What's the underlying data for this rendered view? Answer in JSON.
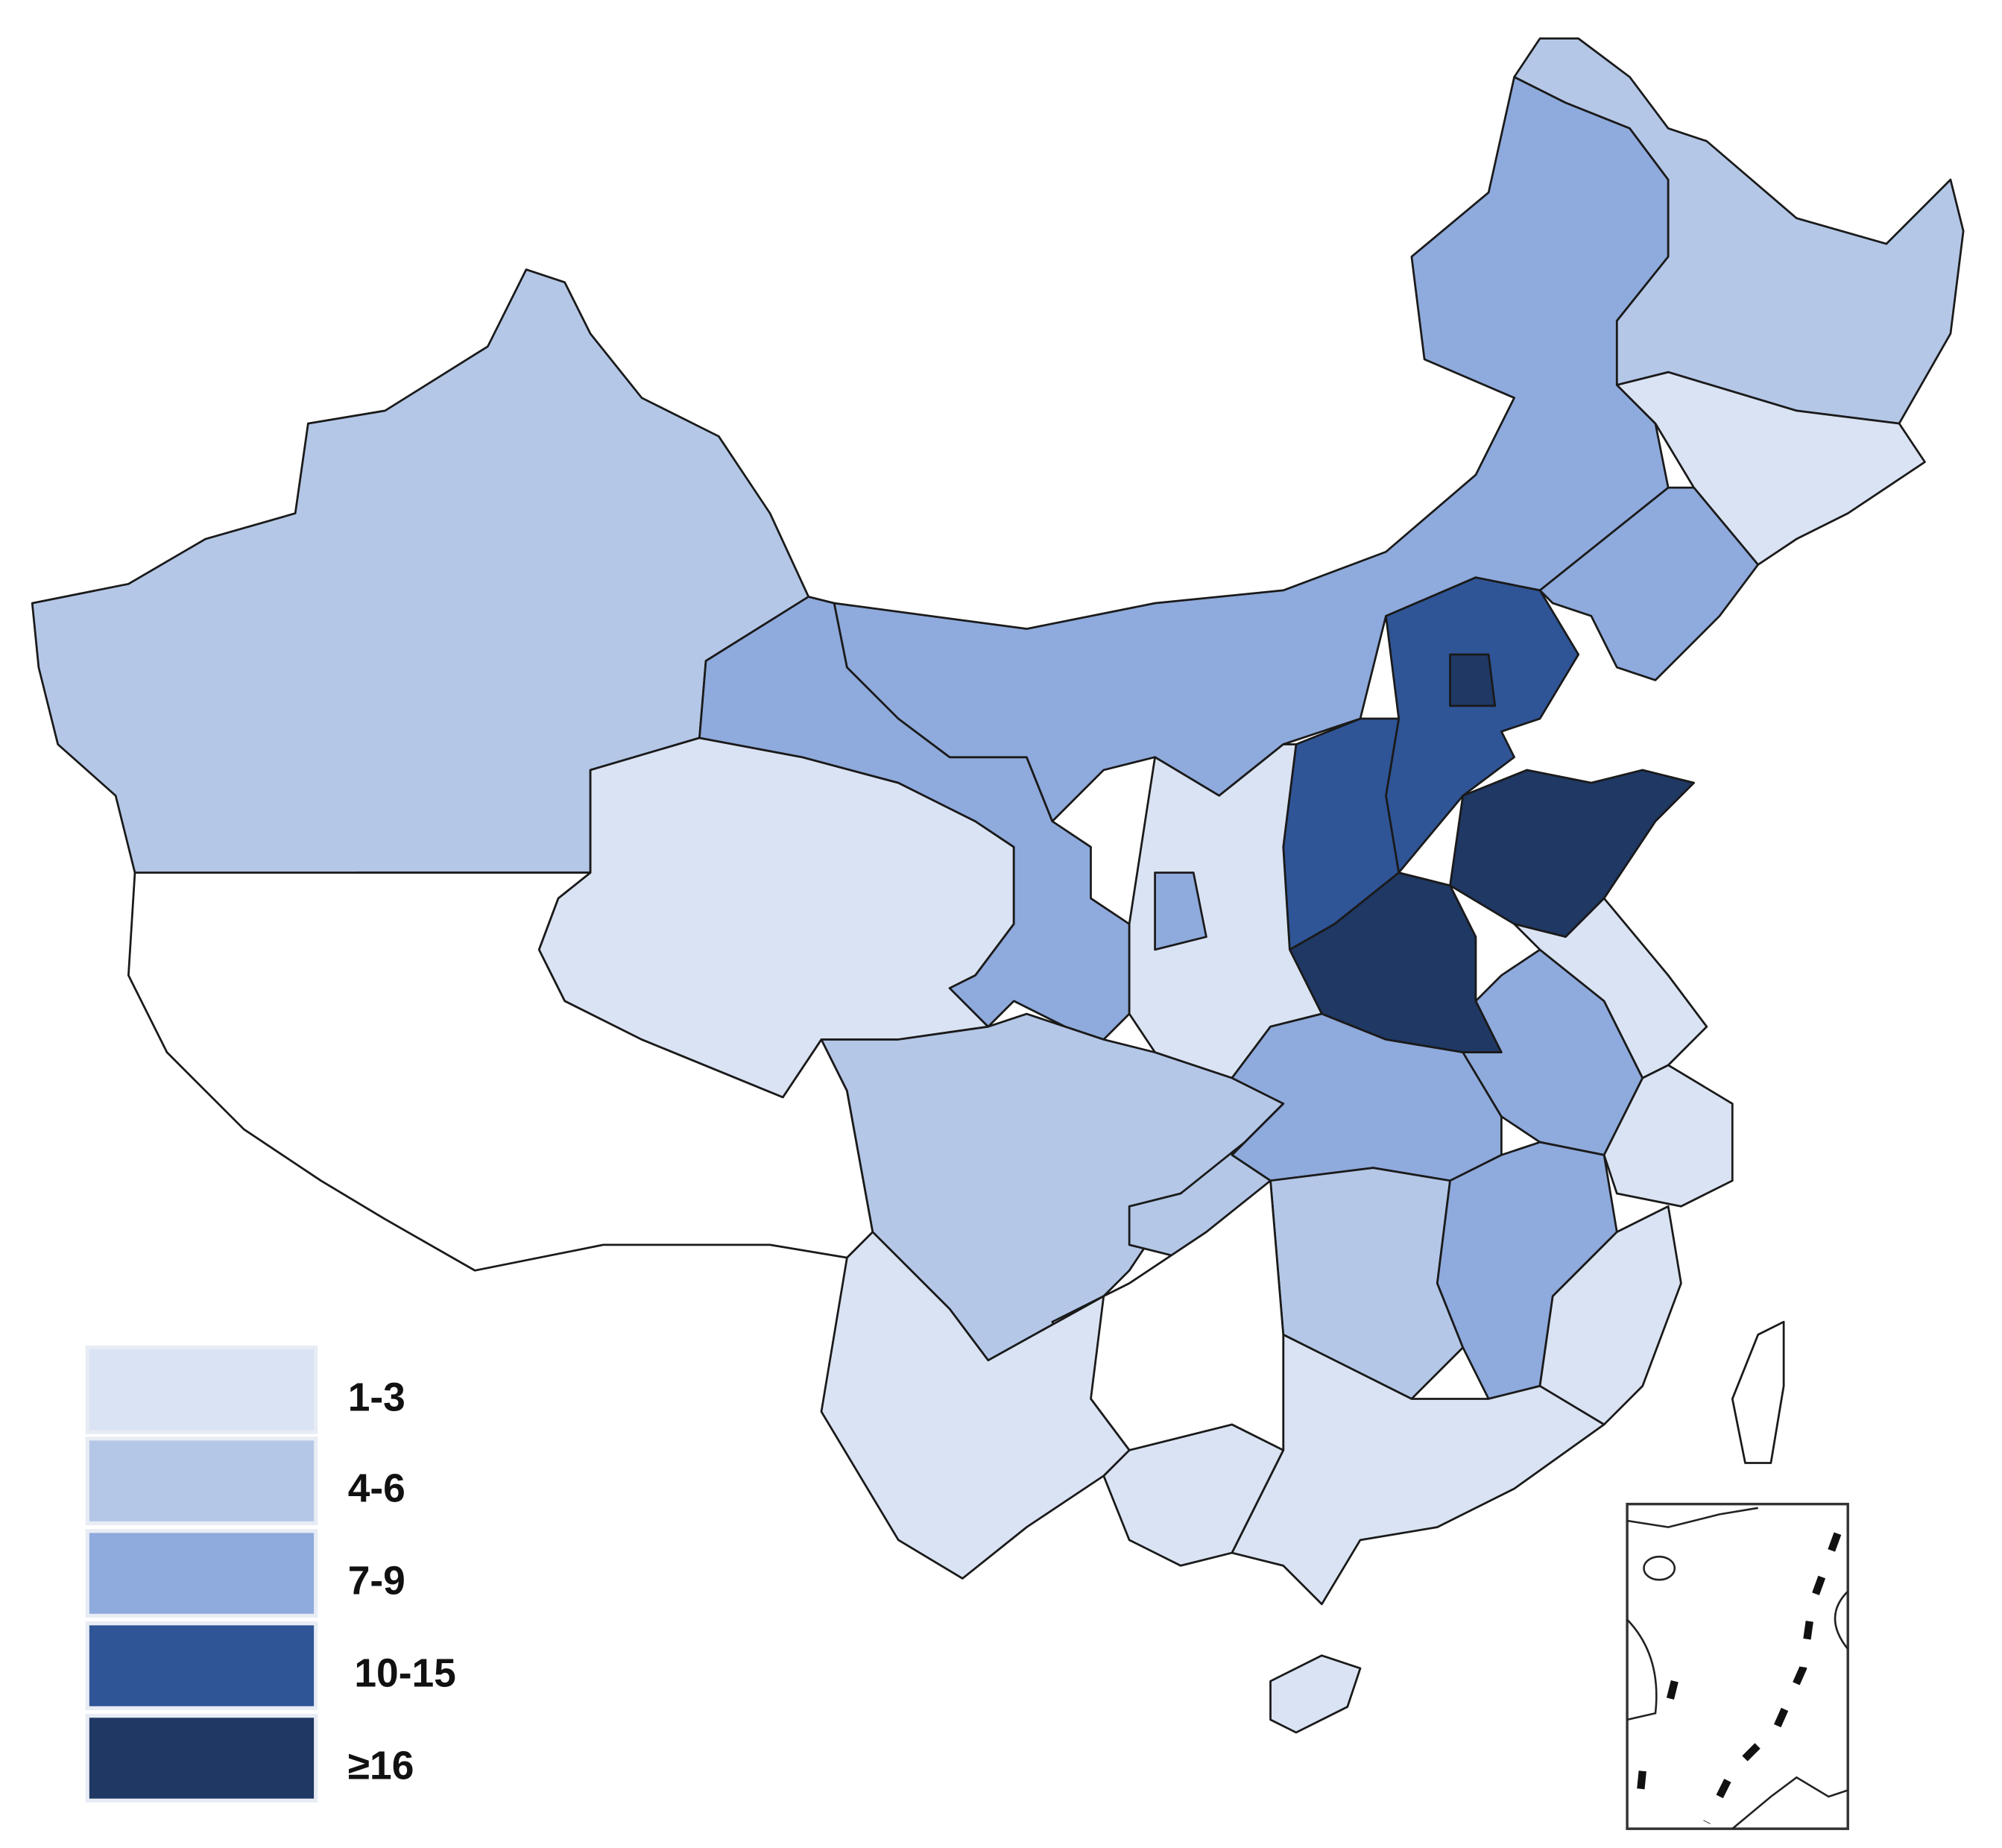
{
  "legend": {
    "items": [
      {
        "label": "1-3",
        "color": "#dae3f3"
      },
      {
        "label": "4-6",
        "color": "#b4c7e7"
      },
      {
        "label": "7-9",
        "color": "#8faadc"
      },
      {
        "label": "10-15",
        "color": "#2f5597"
      },
      {
        "label": "≥16",
        "color": "#1f3864"
      }
    ]
  }
}
